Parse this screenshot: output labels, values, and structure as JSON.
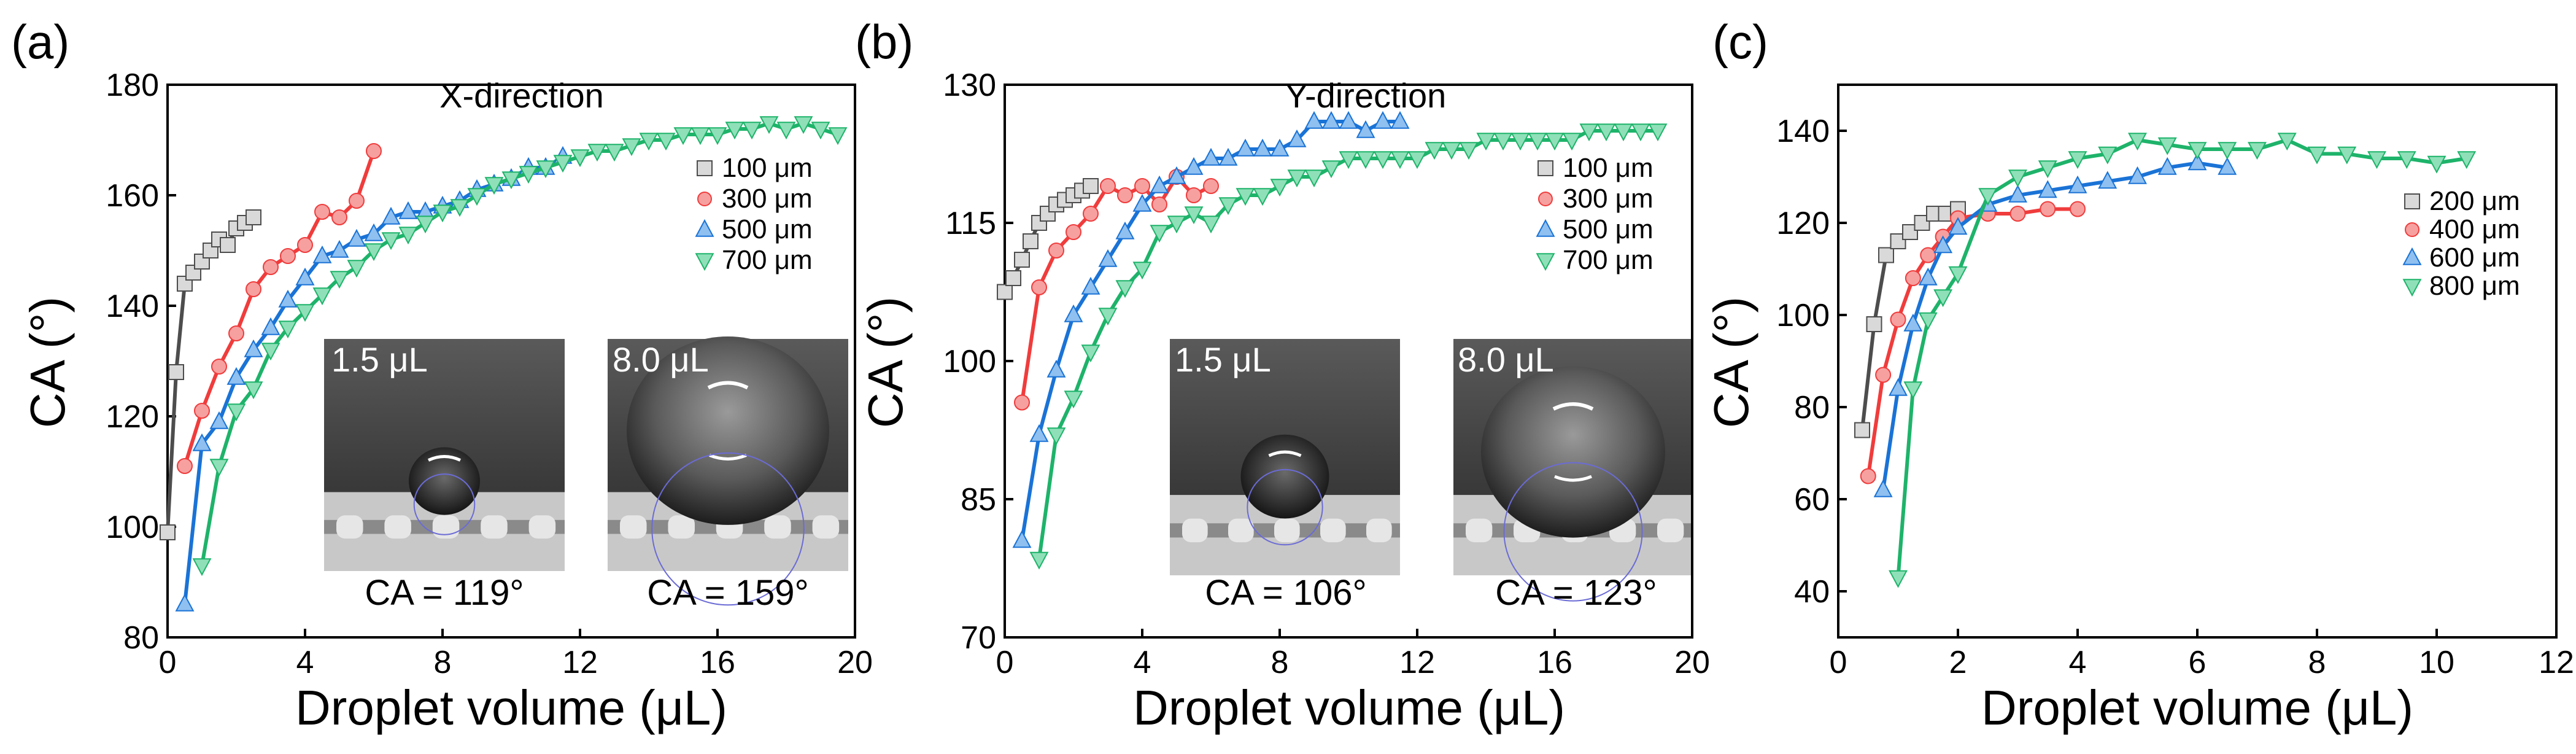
{
  "colors": {
    "series": [
      "#4d4d4d",
      "#f03c3c",
      "#1a73d6",
      "#1eb36a"
    ],
    "marker_fill": [
      "#d9d9d9",
      "#f7a0a0",
      "#8fc0f0",
      "#8fe0b8"
    ]
  },
  "chart_data": [
    {
      "panel": "(a)",
      "type": "scatter",
      "title": "X-direction",
      "xlabel": "Droplet volume (μL)",
      "ylabel": "CA (°)",
      "xlim": [
        0,
        20
      ],
      "ylim": [
        80,
        180
      ],
      "xticks": [
        0,
        4,
        8,
        12,
        16,
        20
      ],
      "yticks": [
        80,
        100,
        120,
        140,
        160,
        180
      ],
      "legend": "top-right",
      "series": [
        {
          "name": "100 μm",
          "marker": "square",
          "x": [
            0,
            0.25,
            0.5,
            0.75,
            1.0,
            1.25,
            1.5,
            1.75,
            2.0,
            2.25,
            2.5
          ],
          "y": [
            99,
            128,
            144,
            146,
            148,
            150,
            152,
            151,
            154,
            155,
            156
          ]
        },
        {
          "name": "300 μm",
          "marker": "circle",
          "x": [
            0.5,
            1.0,
            1.5,
            2.0,
            2.5,
            3.0,
            3.5,
            4.0,
            4.5,
            5.0,
            5.5,
            6.0
          ],
          "y": [
            111,
            121,
            129,
            135,
            143,
            147,
            149,
            151,
            157,
            156,
            159,
            168
          ]
        },
        {
          "name": "500 μm",
          "marker": "triangle-up",
          "x": [
            0.5,
            1.0,
            1.5,
            2.0,
            2.5,
            3.0,
            3.5,
            4.0,
            4.5,
            5.0,
            5.5,
            6.0,
            6.5,
            7.0,
            7.5,
            8.0,
            8.5,
            9.0,
            9.5,
            10.0,
            10.5,
            11.0,
            11.5
          ],
          "y": [
            86,
            115,
            119,
            127,
            132,
            136,
            141,
            145,
            149,
            150,
            152,
            153,
            156,
            157,
            157,
            158,
            159,
            161,
            162,
            163,
            165,
            165,
            167
          ]
        },
        {
          "name": "700 μm",
          "marker": "triangle-down",
          "x": [
            1.0,
            1.5,
            2.0,
            2.5,
            3.0,
            3.5,
            4.0,
            4.5,
            5.0,
            5.5,
            6.0,
            6.5,
            7.0,
            7.5,
            8.0,
            8.5,
            9.0,
            9.5,
            10.0,
            10.5,
            11.0,
            11.5,
            12.0,
            12.5,
            13.0,
            13.5,
            14.0,
            14.5,
            15.0,
            15.5,
            16.0,
            16.5,
            17.0,
            17.5,
            18.0,
            18.5,
            19.0,
            19.5
          ],
          "y": [
            93,
            111,
            121,
            125,
            132,
            136,
            139,
            142,
            145,
            147,
            150,
            152,
            153,
            155,
            157,
            158,
            160,
            162,
            163,
            164,
            165,
            166,
            167,
            168,
            168,
            169,
            170,
            170,
            171,
            171,
            171,
            172,
            172,
            173,
            172,
            173,
            172,
            171
          ]
        }
      ],
      "insets": [
        {
          "volume_label": "1.5 μL",
          "ca_label": "CA = 119°"
        },
        {
          "volume_label": "8.0 μL",
          "ca_label": "CA = 159°"
        }
      ]
    },
    {
      "panel": "(b)",
      "type": "scatter",
      "title": "Y-direction",
      "xlabel": "Droplet volume (μL)",
      "ylabel": "CA (°)",
      "xlim": [
        0,
        20
      ],
      "ylim": [
        70,
        130
      ],
      "xticks": [
        0,
        4,
        8,
        12,
        16,
        20
      ],
      "yticks": [
        70,
        85,
        100,
        115,
        130
      ],
      "legend": "top-right",
      "series": [
        {
          "name": "100 μm",
          "marker": "square",
          "x": [
            0,
            0.25,
            0.5,
            0.75,
            1.0,
            1.25,
            1.5,
            1.75,
            2.0,
            2.25,
            2.5
          ],
          "y": [
            107.5,
            109,
            111,
            113,
            115,
            116,
            117,
            117.5,
            118,
            118.5,
            119
          ]
        },
        {
          "name": "300 μm",
          "marker": "circle",
          "x": [
            0.5,
            1.0,
            1.5,
            2.0,
            2.5,
            3.0,
            3.5,
            4.0,
            4.5,
            5.0,
            5.5,
            6.0
          ],
          "y": [
            95.5,
            108,
            112,
            114,
            116,
            119,
            118,
            119,
            117,
            120,
            118,
            119
          ]
        },
        {
          "name": "500 μm",
          "marker": "triangle-up",
          "x": [
            0.5,
            1.0,
            1.5,
            2.0,
            2.5,
            3.0,
            3.5,
            4.0,
            4.5,
            5.0,
            5.5,
            6.0,
            6.5,
            7.0,
            7.5,
            8.0,
            8.5,
            9.0,
            9.5,
            10.0,
            10.5,
            11.0,
            11.5
          ],
          "y": [
            80.5,
            92,
            99,
            105,
            108,
            111,
            114,
            117,
            119,
            120,
            121,
            122,
            122,
            123,
            123,
            123,
            124,
            126,
            126,
            126,
            125,
            126,
            126
          ]
        },
        {
          "name": "700 μm",
          "marker": "triangle-down",
          "x": [
            1.0,
            1.5,
            2.0,
            2.5,
            3.0,
            3.5,
            4.0,
            4.5,
            5.0,
            5.5,
            6.0,
            6.5,
            7.0,
            7.5,
            8.0,
            8.5,
            9.0,
            9.5,
            10.0,
            10.5,
            11.0,
            11.5,
            12.0,
            12.5,
            13.0,
            13.5,
            14.0,
            14.5,
            15.0,
            15.5,
            16.0,
            16.5,
            17.0,
            17.5,
            18.0,
            18.5,
            19.0
          ],
          "y": [
            78.5,
            92,
            96,
            101,
            105,
            108,
            110,
            114,
            115,
            116,
            115,
            117,
            118,
            118,
            119,
            120,
            120,
            121,
            122,
            122,
            122,
            122,
            122,
            123,
            123,
            123,
            124,
            124,
            124,
            124,
            124,
            124,
            125,
            125,
            125,
            125,
            125
          ]
        }
      ],
      "insets": [
        {
          "volume_label": "1.5 μL",
          "ca_label": "CA = 106°"
        },
        {
          "volume_label": "8.0 μL",
          "ca_label": "CA = 123°"
        }
      ]
    },
    {
      "panel": "(c)",
      "type": "scatter",
      "title": "",
      "xlabel": "Droplet volume (μL)",
      "ylabel": "CA (°)",
      "xlim": [
        0,
        12
      ],
      "ylim": [
        30,
        150
      ],
      "xticks": [
        0,
        2,
        4,
        6,
        8,
        10,
        12
      ],
      "yticks": [
        40,
        60,
        80,
        100,
        120,
        140
      ],
      "legend": "right",
      "series": [
        {
          "name": "200 μm",
          "marker": "square",
          "x": [
            0.4,
            0.6,
            0.8,
            1.0,
            1.2,
            1.4,
            1.6,
            1.8,
            2.0
          ],
          "y": [
            75,
            98,
            113,
            116,
            118,
            120,
            122,
            122,
            123
          ]
        },
        {
          "name": "400 μm",
          "marker": "circle",
          "x": [
            0.5,
            0.75,
            1.0,
            1.25,
            1.5,
            1.75,
            2.0,
            2.5,
            3.0,
            3.5,
            4.0
          ],
          "y": [
            65,
            87,
            99,
            108,
            113,
            117,
            121,
            122,
            122,
            123,
            123
          ]
        },
        {
          "name": "600 μm",
          "marker": "triangle-up",
          "x": [
            0.75,
            1.0,
            1.25,
            1.5,
            1.75,
            2.0,
            2.5,
            3.0,
            3.5,
            4.0,
            4.5,
            5.0,
            5.5,
            6.0,
            6.5
          ],
          "y": [
            62,
            84,
            98,
            108,
            115,
            119,
            124,
            126,
            127,
            128,
            129,
            130,
            132,
            133,
            132
          ]
        },
        {
          "name": "800 μm",
          "marker": "triangle-down",
          "x": [
            1.0,
            1.25,
            1.5,
            1.75,
            2.0,
            2.5,
            3.0,
            3.5,
            4.0,
            4.5,
            5.0,
            5.5,
            6.0,
            6.5,
            7.0,
            7.5,
            8.0,
            8.5,
            9.0,
            9.5,
            10.0,
            10.5
          ],
          "y": [
            43,
            84,
            99,
            104,
            109,
            126,
            130,
            132,
            134,
            135,
            138,
            137,
            136,
            136,
            136,
            138,
            135,
            135,
            134,
            134,
            133,
            134
          ]
        }
      ],
      "insets": []
    }
  ]
}
